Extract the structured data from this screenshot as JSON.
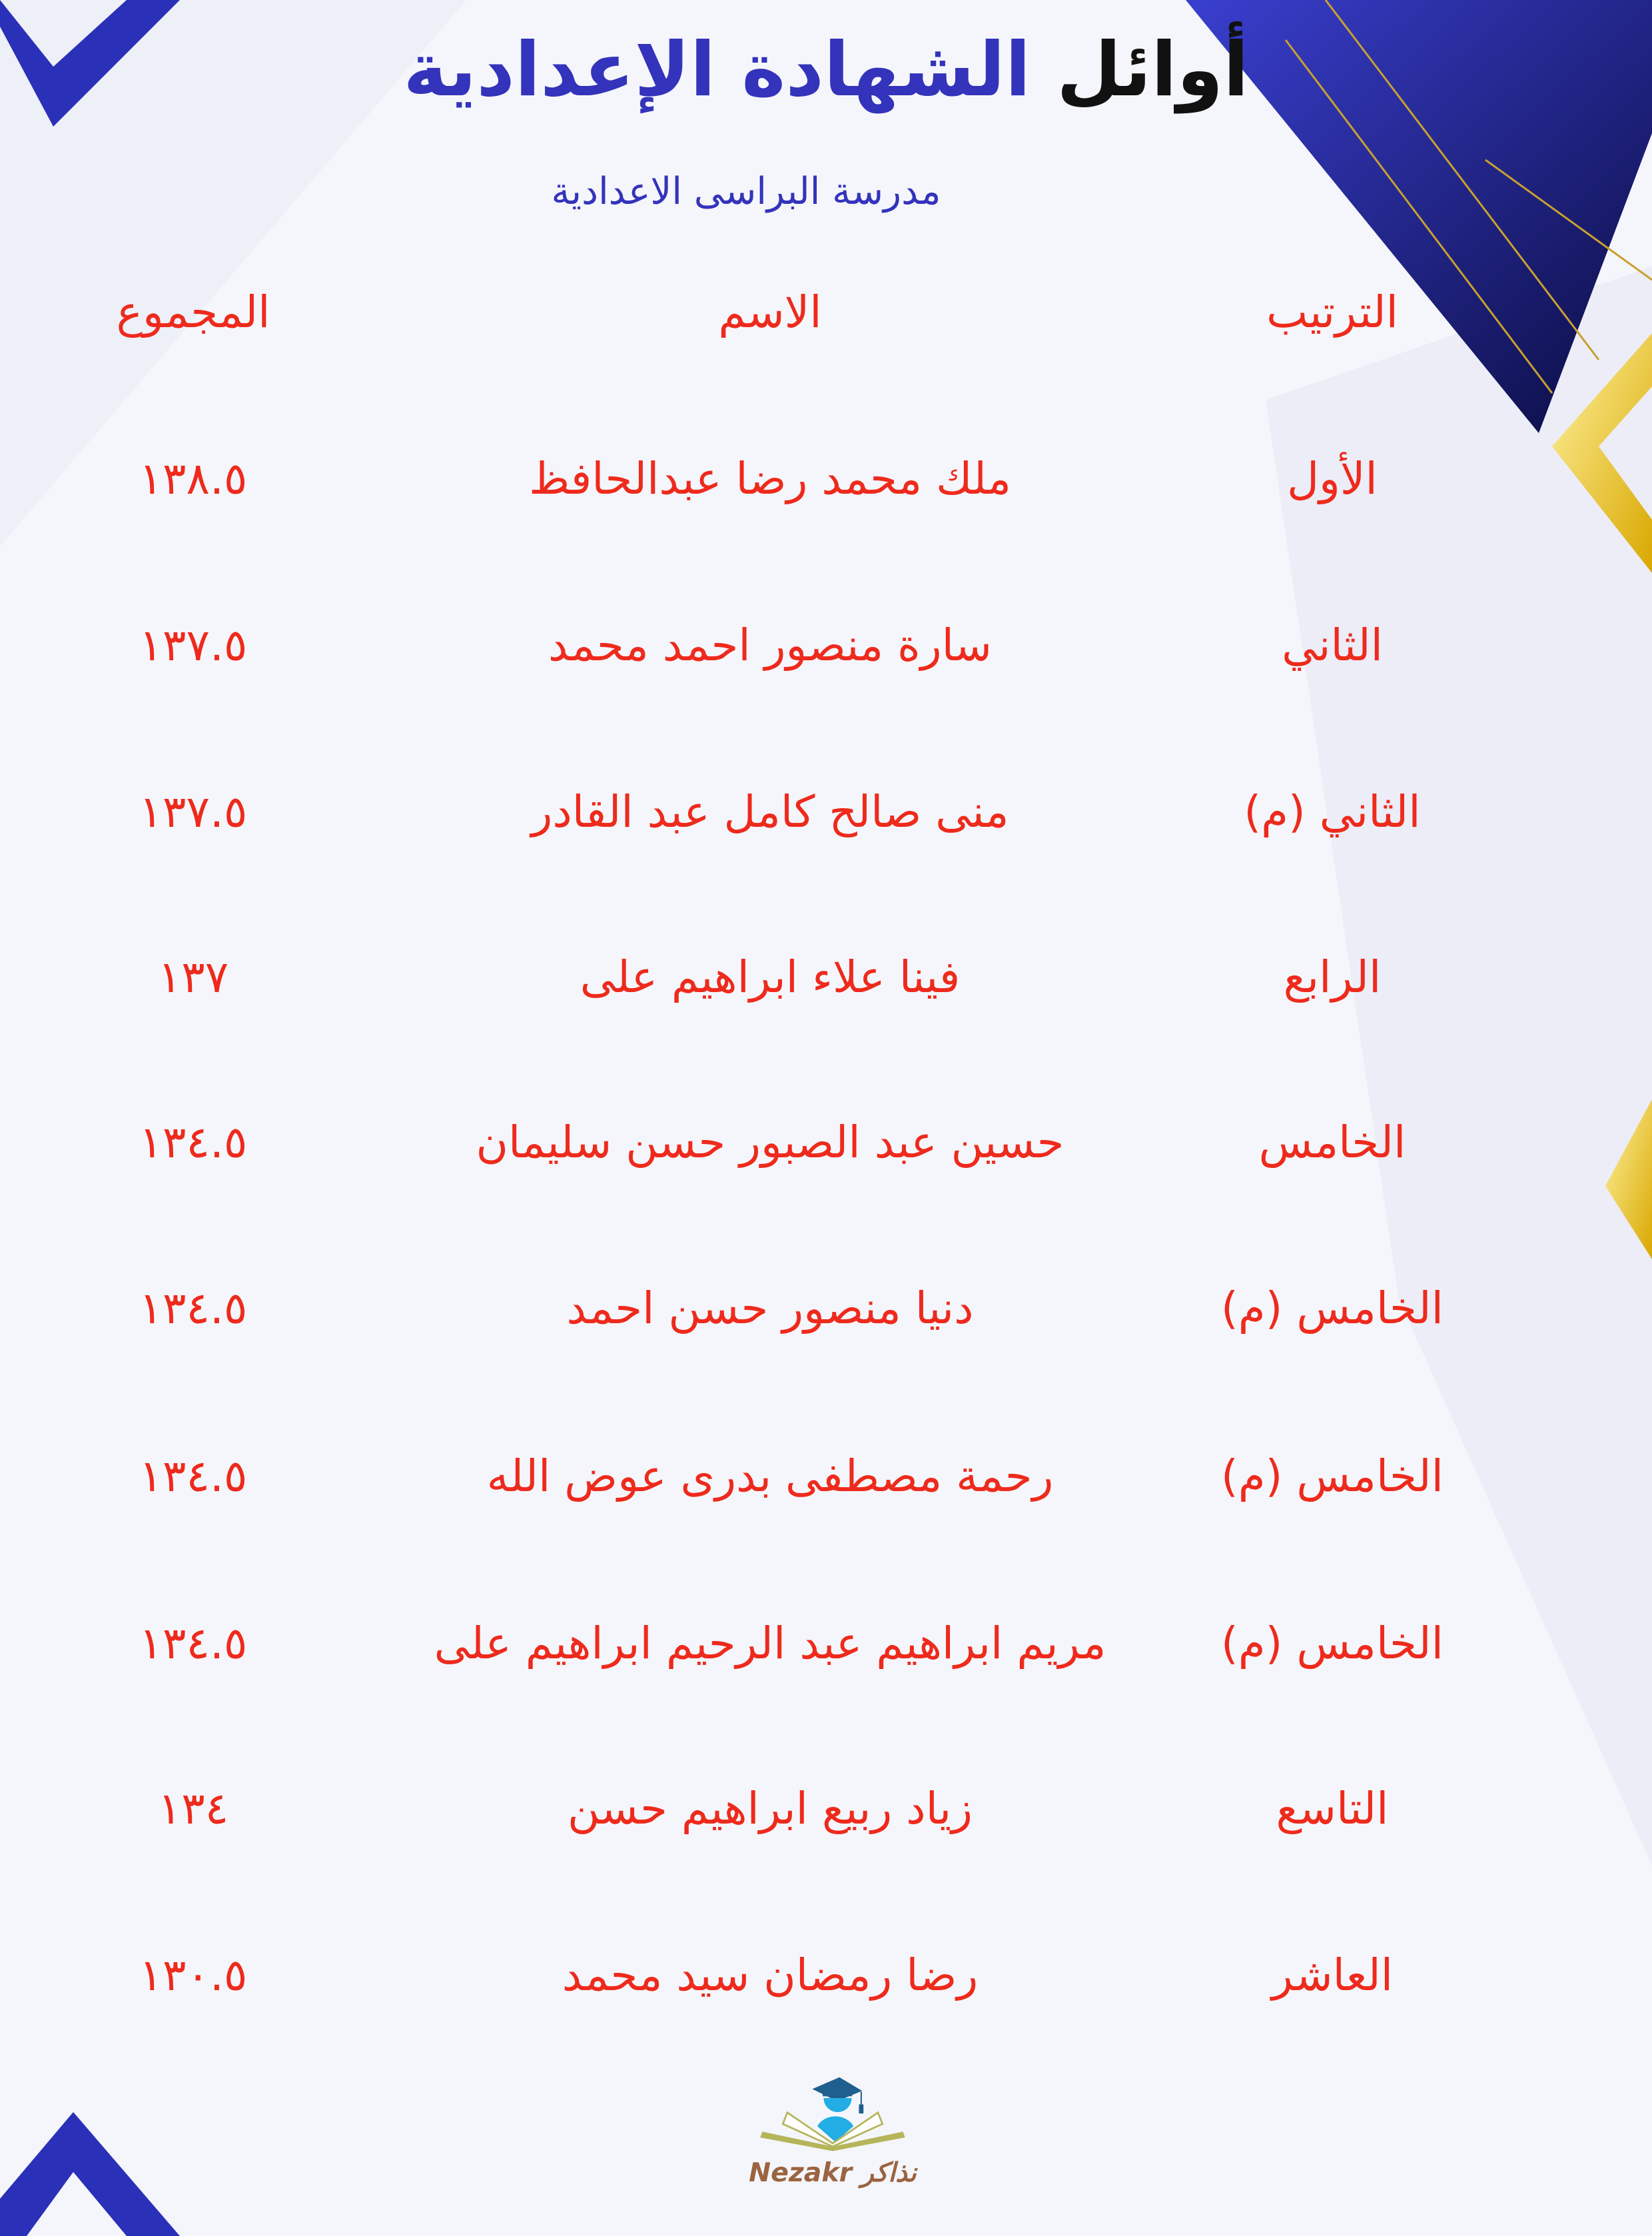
{
  "header": {
    "title_part1": "أوائل",
    "title_part2": "الشهادة الإعدادية",
    "school": "مدرسة البراسى الاعدادية"
  },
  "table": {
    "columns": [
      "الترتيب",
      "الاسم",
      "المجموع"
    ],
    "rows": [
      {
        "rank": "الأول",
        "name": "ملك محمد رضا عبدالحافظ",
        "total": "١٣٨.٥"
      },
      {
        "rank": "الثاني",
        "name": "سارة منصور احمد محمد",
        "total": "١٣٧.٥"
      },
      {
        "rank": "الثاني (م)",
        "name": "منى صالح كامل عبد القادر",
        "total": "١٣٧.٥"
      },
      {
        "rank": "الرابع",
        "name": "فينا علاء ابراهيم على",
        "total": "١٣٧"
      },
      {
        "rank": "الخامس",
        "name": "حسين عبد الصبور حسن سليمان",
        "total": "١٣٤.٥"
      },
      {
        "rank": "الخامس (م)",
        "name": "دنيا منصور حسن احمد",
        "total": "١٣٤.٥"
      },
      {
        "rank": "الخامس (م)",
        "name": "رحمة مصطفى بدرى عوض الله",
        "total": "١٣٤.٥"
      },
      {
        "rank": "الخامس (م)",
        "name": "مريم ابراهيم عبد الرحيم ابراهيم على",
        "total": "١٣٤.٥"
      },
      {
        "rank": "التاسع",
        "name": "زياد ربيع ابراهيم حسن",
        "total": "١٣٤"
      },
      {
        "rank": "العاشر",
        "name": "رضا رمضان سيد محمد",
        "total": "١٣٠.٥"
      }
    ]
  },
  "logo": {
    "text": "Nezakr نذاكر",
    "icon": "graduate-book-logo"
  },
  "colors": {
    "accent_blue": "#3333bb",
    "text_red": "#ee2a1c",
    "gold": "#e8c020",
    "logo_brown": "#9a6440"
  }
}
